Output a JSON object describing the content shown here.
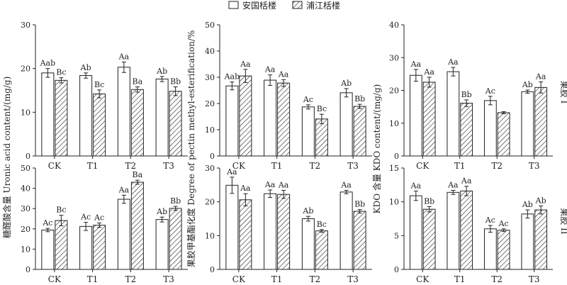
{
  "legend": {
    "series_a": "安国栝楼",
    "series_b": "浦江栝楼"
  },
  "y_labels": {
    "uronic": "糖醛酸含量 Uronic acid content/(mg/g)",
    "esterification": "果胶甲基酯化度 Degree of pectin methyl-esterification/%",
    "kdo": "KDO 含量 KDO content/(mg/g)"
  },
  "row_labels": {
    "row1": "果胶 I",
    "row2": "果胶 II"
  },
  "chart_data": [
    {
      "type": "bar",
      "panel": "row1-uronic",
      "categories": [
        "CK",
        "T1",
        "T2",
        "T3"
      ],
      "ylim": [
        0,
        30
      ],
      "series": [
        {
          "name": "安国栝楼",
          "values": [
            19.0,
            18.4,
            20.3,
            17.6
          ],
          "errors": [
            1.0,
            0.6,
            1.2,
            0.6
          ],
          "labels": [
            "Aab",
            "Ab",
            "Aa",
            "Ab"
          ]
        },
        {
          "name": "浦江栝楼",
          "values": [
            17.3,
            14.2,
            15.2,
            14.8
          ],
          "errors": [
            0.6,
            0.9,
            0.6,
            1.0
          ],
          "labels": [
            "Bc",
            "Bc",
            "Ba",
            "Bb"
          ]
        }
      ]
    },
    {
      "type": "bar",
      "panel": "row1-esterification",
      "categories": [
        "CK",
        "T1",
        "T2",
        "T3"
      ],
      "ylim": [
        0,
        50
      ],
      "series": [
        {
          "name": "安国栝楼",
          "values": [
            26.7,
            28.9,
            18.7,
            24.1
          ],
          "errors": [
            1.5,
            2.0,
            0.8,
            1.6
          ],
          "labels": [
            "Aab",
            "Aa",
            "Ac",
            "Ab"
          ]
        },
        {
          "name": "浦江栝楼",
          "values": [
            30.5,
            27.8,
            14.1,
            18.9
          ],
          "errors": [
            2.5,
            1.3,
            1.8,
            0.8
          ],
          "labels": [
            "Aa",
            "Aa",
            "Bc",
            "Bb"
          ]
        }
      ]
    },
    {
      "type": "bar",
      "panel": "row1-kdo",
      "categories": [
        "CK",
        "T1",
        "T2",
        "T3"
      ],
      "ylim": [
        0,
        40
      ],
      "series": [
        {
          "name": "安国栝楼",
          "values": [
            24.6,
            25.7,
            16.9,
            19.6
          ],
          "errors": [
            1.8,
            1.3,
            1.3,
            0.5
          ],
          "labels": [
            "Aa",
            "Aa",
            "Ac",
            "Ab"
          ]
        },
        {
          "name": "浦江栝楼",
          "values": [
            22.5,
            16.1,
            13.2,
            20.9
          ],
          "errors": [
            1.5,
            1.0,
            0.3,
            1.7
          ],
          "labels": [
            "Aa",
            "Bb",
            "",
            "Aa"
          ]
        }
      ]
    },
    {
      "type": "bar",
      "panel": "row2-uronic",
      "categories": [
        "CK",
        "T1",
        "T2",
        "T3"
      ],
      "ylim": [
        0,
        50
      ],
      "series": [
        {
          "name": "安国栝楼",
          "values": [
            19.4,
            21.2,
            34.6,
            24.6
          ],
          "errors": [
            0.8,
            2.0,
            2.0,
            1.2
          ],
          "labels": [
            "Ac",
            "Ac",
            "Aa",
            "Ab"
          ]
        },
        {
          "name": "浦江栝楼",
          "values": [
            24.1,
            21.8,
            43.0,
            30.1
          ],
          "errors": [
            2.6,
            1.1,
            1.0,
            1.0
          ],
          "labels": [
            "Bc",
            "Ac",
            "Ba",
            "Bb"
          ]
        }
      ]
    },
    {
      "type": "bar",
      "panel": "row2-esterification",
      "categories": [
        "CK",
        "T1",
        "T2",
        "T3"
      ],
      "ylim": [
        0,
        30
      ],
      "series": [
        {
          "name": "安国栝楼",
          "values": [
            24.9,
            22.4,
            15.0,
            22.9
          ],
          "errors": [
            2.4,
            1.1,
            0.7,
            0.5
          ],
          "labels": [
            "Aa",
            "Aa",
            "Ab",
            "Aa"
          ]
        },
        {
          "name": "浦江栝楼",
          "values": [
            20.6,
            22.2,
            11.4,
            17.2
          ],
          "errors": [
            1.8,
            1.2,
            0.4,
            0.5
          ],
          "labels": [
            "Aa",
            "Aa",
            "Bc",
            "Bb"
          ]
        }
      ]
    },
    {
      "type": "bar",
      "panel": "row2-kdo",
      "categories": [
        "CK",
        "T1",
        "T2",
        "T3"
      ],
      "ylim": [
        0,
        15
      ],
      "series": [
        {
          "name": "安国栝楼",
          "values": [
            10.9,
            11.4,
            6.0,
            8.2
          ],
          "errors": [
            0.7,
            0.3,
            0.5,
            0.6
          ],
          "labels": [
            "Aa",
            "Aa",
            "Ac",
            "Ab"
          ]
        },
        {
          "name": "浦江栝楼",
          "values": [
            8.9,
            11.6,
            5.8,
            8.8
          ],
          "errors": [
            0.4,
            0.7,
            0.2,
            0.6
          ],
          "labels": [
            "Bb",
            "Aa",
            "Ac",
            "Ab"
          ]
        }
      ]
    }
  ]
}
